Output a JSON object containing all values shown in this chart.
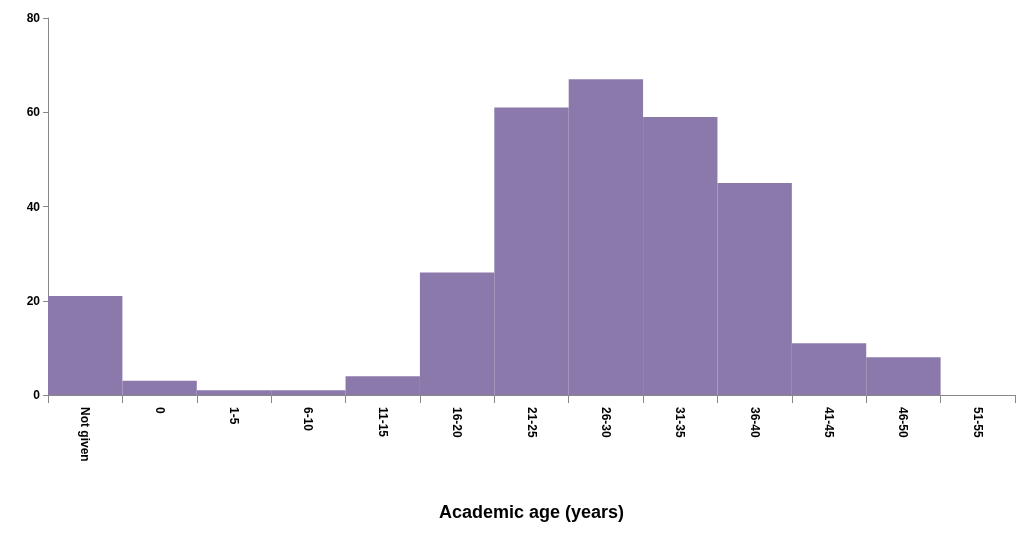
{
  "chart_data": {
    "type": "bar",
    "xlabel": "Academic age (years)",
    "categories": [
      "Not given",
      "0",
      "1-5",
      "6-10",
      "11-15",
      "16-20",
      "21-25",
      "26-30",
      "31-35",
      "36-40",
      "41-45",
      "46-50",
      "51-55"
    ],
    "values": [
      21,
      3,
      1,
      1,
      4,
      26,
      61,
      67,
      59,
      45,
      11,
      8,
      0
    ],
    "color": "#8b79ab",
    "ylim": [
      0,
      80
    ],
    "yticks": [
      0,
      20,
      40,
      60,
      80
    ]
  }
}
